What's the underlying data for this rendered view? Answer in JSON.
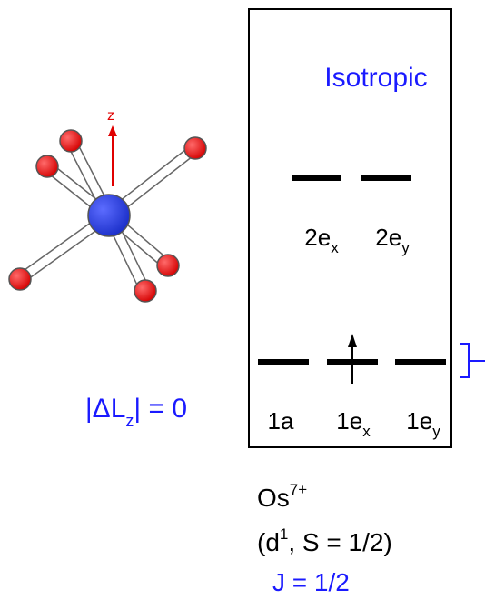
{
  "molecule": {
    "axis_label": "z",
    "delta_l": {
      "pre": "|ΔL",
      "sub": "z",
      "post": "| = 0"
    }
  },
  "panel": {
    "title": "Isotropic",
    "upper_levels": [
      {
        "main": "2e",
        "sub": "x"
      },
      {
        "main": "2e",
        "sub": "y"
      }
    ],
    "lower_levels": [
      {
        "main": "1a",
        "sub": ""
      },
      {
        "main": "1e",
        "sub": "x"
      },
      {
        "main": "1e",
        "sub": "y"
      }
    ]
  },
  "ion": {
    "name": "Os",
    "charge": "7+"
  },
  "config": {
    "pre": "(d",
    "sup": "1",
    "post": ", S = 1/2)"
  },
  "j_value": "J = 1/2"
}
